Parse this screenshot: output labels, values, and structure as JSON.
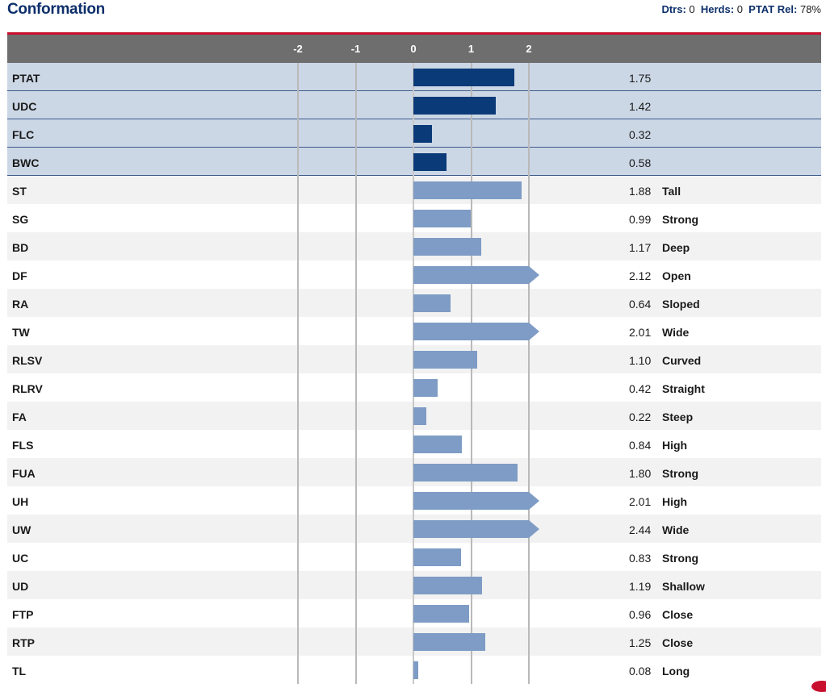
{
  "title": "Conformation",
  "stats": {
    "dtrs_label": "Dtrs:",
    "dtrs_value": "0",
    "herds_label": "Herds:",
    "herds_value": "0",
    "rel_label": "PTAT Rel:",
    "rel_value": "78%"
  },
  "colors": {
    "summary_bar": "#0b3a78",
    "trait_bar": "#7e9cc5",
    "accent": "#c8102e",
    "title": "#0d2f6b"
  },
  "chart_data": {
    "type": "bar",
    "orientation": "horizontal",
    "xlim": [
      -2,
      2
    ],
    "ticks": [
      "-2",
      "-1",
      "0",
      "1",
      "2"
    ],
    "tick_values": [
      -2,
      -1,
      0,
      1,
      2
    ],
    "categories": [
      "PTAT",
      "UDC",
      "FLC",
      "BWC",
      "ST",
      "SG",
      "BD",
      "DF",
      "RA",
      "TW",
      "RLSV",
      "RLRV",
      "FA",
      "FLS",
      "FUA",
      "UH",
      "UW",
      "UC",
      "UD",
      "FTP",
      "RTP",
      "TL"
    ],
    "values": [
      1.75,
      1.42,
      0.32,
      0.58,
      1.88,
      0.99,
      1.17,
      2.12,
      0.64,
      2.01,
      1.1,
      0.42,
      0.22,
      0.84,
      1.8,
      2.01,
      2.44,
      0.83,
      1.19,
      0.96,
      1.25,
      0.08
    ],
    "value_labels": [
      "1.75",
      "1.42",
      "0.32",
      "0.58",
      "1.88",
      "0.99",
      "1.17",
      "2.12",
      "0.64",
      "2.01",
      "1.10",
      "0.42",
      "0.22",
      "0.84",
      "1.80",
      "2.01",
      "2.44",
      "0.83",
      "1.19",
      "0.96",
      "1.25",
      "0.08"
    ],
    "descriptors": [
      "",
      "",
      "",
      "",
      "Tall",
      "Strong",
      "Deep",
      "Open",
      "Sloped",
      "Wide",
      "Curved",
      "Straight",
      "Steep",
      "High",
      "Strong",
      "High",
      "Wide",
      "Strong",
      "Shallow",
      "Close",
      "Close",
      "Long"
    ],
    "summary_rows": 4
  }
}
